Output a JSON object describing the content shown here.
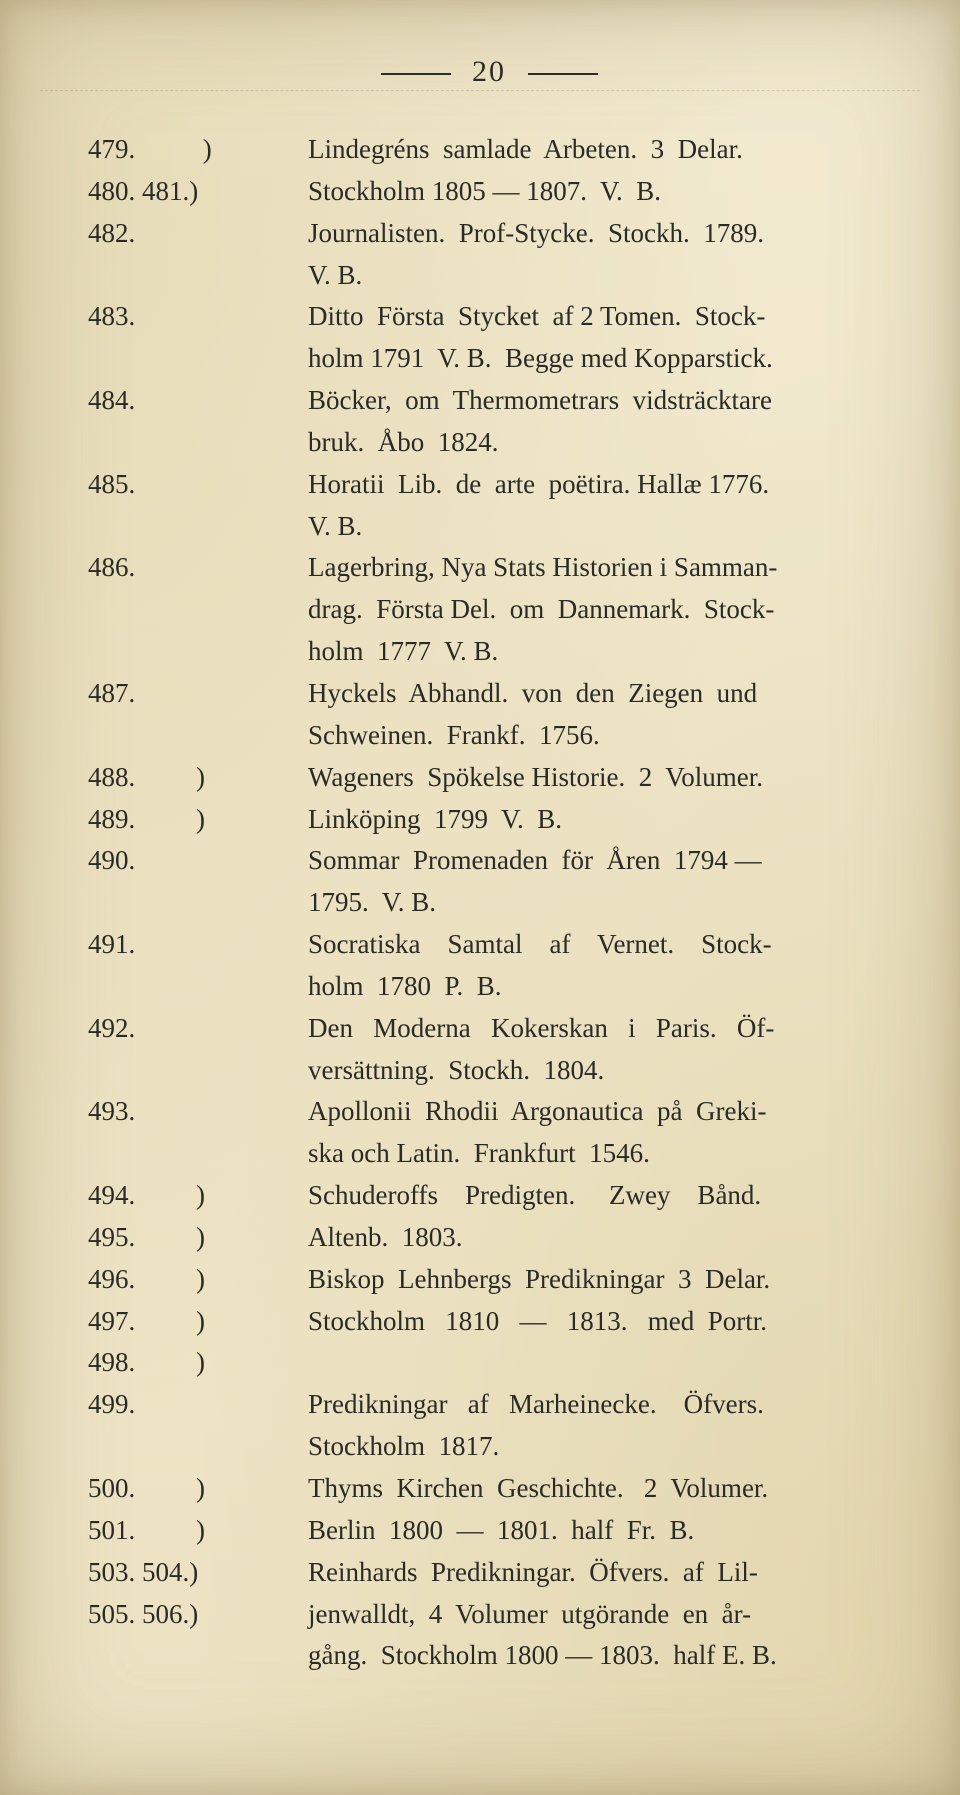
{
  "page_number": "20",
  "typography": {
    "body_fontsize_pt": 20,
    "header_fontsize_pt": 22,
    "font_family": "Georgia/Times serif",
    "text_color": "#2a2a26",
    "background_color": "#f0e8cc"
  },
  "entries": [
    {
      "num": "479.          )",
      "desc": "Lindegréns  samlade  Arbeten.  3  Delar."
    },
    {
      "num": "480. 481.)",
      "desc": "Stockholm 1805 — 1807.  V.  B."
    },
    {
      "num": "482.",
      "desc": "Journalisten.  Prof-Stycke.  Stockh.  1789.\nV. B."
    },
    {
      "num": "483.",
      "desc": "Ditto  Första  Stycket  af 2 Tomen.  Stock-\nholm 1791  V. B.  Begge med Kopparstick."
    },
    {
      "num": "484.",
      "desc": "Böcker,  om  Thermometrars  vidsträcktare\nbruk.  Åbo  1824."
    },
    {
      "num": "485.",
      "desc": "Horatii  Lib.  de  arte  poëtira. Hallæ 1776.\nV. B."
    },
    {
      "num": "486.",
      "desc": "Lagerbring, Nya Stats Historien i Samman-\ndrag.  Första Del.  om  Dannemark.  Stock-\nholm  1777  V. B."
    },
    {
      "num": "487.",
      "desc": "Hyckels  Abhandl.  von  den  Ziegen  und\nSchweinen.  Frankf.  1756."
    },
    {
      "num": "488.         )",
      "desc": "Wageners  Spökelse Historie.  2  Volumer."
    },
    {
      "num": "489.         )",
      "desc": "Linköping  1799  V.  B."
    },
    {
      "num": "490.",
      "desc": "Sommar  Promenaden  för  Åren  1794 —\n1795.  V. B."
    },
    {
      "num": "491.",
      "desc": "Socratiska    Samtal    af    Vernet.    Stock-\nholm  1780  P.  B."
    },
    {
      "num": "492.",
      "desc": "Den   Moderna   Kokerskan   i   Paris.   Öf-\nversättning.  Stockh.  1804."
    },
    {
      "num": "493.",
      "desc": "Apollonii  Rhodii  Argonautica  på  Greki-\nska och Latin.  Frankfurt  1546."
    },
    {
      "num": "494.         )",
      "desc": "Schuderoffs    Predigten.     Zwey    Bånd."
    },
    {
      "num": "495.         )",
      "desc": "Altenb.  1803."
    },
    {
      "num": "496.         )",
      "desc": "Biskop  Lehnbergs  Predikningar  3  Delar."
    },
    {
      "num": "497.         )",
      "desc": "Stockholm   1810   —   1813.   med  Portr."
    },
    {
      "num": "498.         )",
      "desc": ""
    },
    {
      "num": "499.",
      "desc": "Predikningar   af   Marheinecke.    Öfvers.\nStockholm  1817."
    },
    {
      "num": "500.         )",
      "desc": "Thyms  Kirchen  Geschichte.   2  Volumer."
    },
    {
      "num": "501.         )",
      "desc": "Berlin  1800  —  1801.  half  Fr.  B."
    },
    {
      "num": "503. 504.)",
      "desc": "Reinhards  Predikningar.  Öfvers.  af  Lil-"
    },
    {
      "num": "505. 506.)",
      "desc": "jenwalldt,  4  Volumer  utgörande  en  år-\ngång.  Stockholm 1800 — 1803.  half E. B."
    }
  ]
}
